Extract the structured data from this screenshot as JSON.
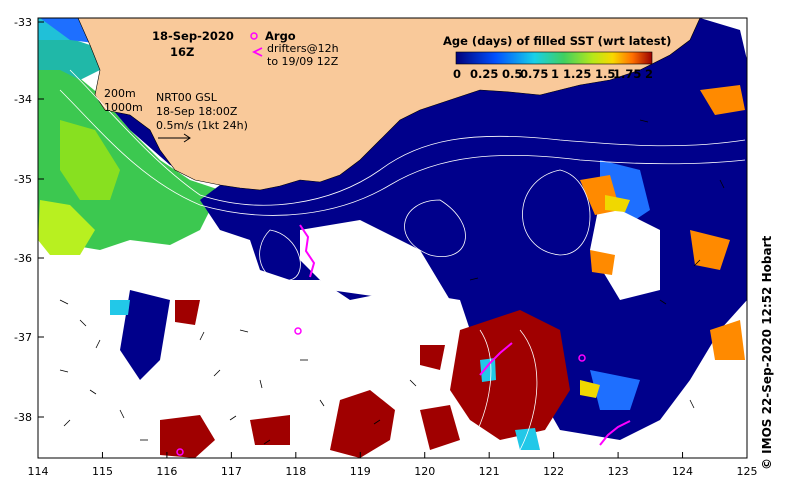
{
  "map": {
    "date": "18-Sep-2020",
    "time": "16Z",
    "legend_argo": "Argo",
    "legend_drifters_1": "drifters@12h",
    "legend_drifters_2": "to 19/09 12Z",
    "isobath_1": "200m",
    "isobath_2": "1000m",
    "current_1": "NRT00 GSL",
    "current_2": "18-Sep 18:00Z",
    "current_3": "0.5m/s (1kt 24h)",
    "colorbar_title": "Age (days) of filled SST (wrt latest)",
    "colorbar_ticks": [
      "0",
      "0.25",
      "0.5",
      "0.75",
      "1",
      "1.25",
      "1.5",
      "1.75",
      "2"
    ],
    "credit": "© IMOS 22-Sep-2020 12:52 Hobart",
    "lon_ticks": [
      "114",
      "115",
      "116",
      "117",
      "118",
      "119",
      "120",
      "121",
      "122",
      "123",
      "124",
      "125"
    ],
    "lat_ticks": [
      "-33",
      "-34",
      "-35",
      "-36",
      "-37",
      "-38"
    ],
    "colors": {
      "land": "#f9c99a",
      "age_0": "#00008b",
      "age_05": "#1e6fff",
      "age_1": "#22c8e8",
      "age_125": "#38d07a",
      "age_15": "#9be01e",
      "age_175": "#f0d800",
      "age_2": "#ff8a00",
      "age_max": "#a00000",
      "argo": "#ff00ff"
    }
  }
}
